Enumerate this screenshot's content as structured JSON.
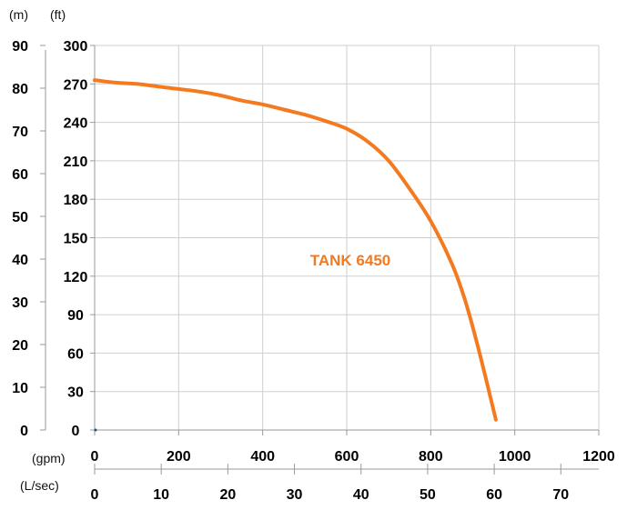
{
  "chart_data": {
    "type": "line",
    "title": "",
    "unit_labels": {
      "left_m": "(m)",
      "left_ft": "(ft)",
      "bottom_gpm": "(gpm)",
      "bottom_lsec": "(L/sec)"
    },
    "axes": {
      "y_ft": {
        "min": 0,
        "max": 300,
        "ticks": [
          0,
          30,
          60,
          90,
          120,
          150,
          180,
          210,
          240,
          270,
          300
        ]
      },
      "y_m": {
        "min": 0,
        "max": 90,
        "ticks": [
          0,
          10,
          20,
          30,
          40,
          50,
          60,
          70,
          80,
          90
        ]
      },
      "x_gpm": {
        "min": 0,
        "max": 1200,
        "ticks": [
          0,
          200,
          400,
          600,
          800,
          1000,
          1200
        ]
      },
      "x_lsec": {
        "min": 0,
        "max": 75.7,
        "ticks": [
          0,
          10,
          20,
          30,
          40,
          50,
          60,
          70
        ]
      }
    },
    "grid": true,
    "series": [
      {
        "name": "TANK 6450",
        "color": "#f47a20",
        "x": [
          0,
          50,
          100,
          150,
          200,
          250,
          300,
          350,
          400,
          450,
          500,
          550,
          600,
          650,
          700,
          750,
          800,
          850,
          880,
          910,
          935,
          955
        ],
        "y": [
          273,
          271,
          270,
          268,
          266,
          264,
          261,
          257,
          254,
          250,
          246,
          241,
          235,
          225,
          210,
          188,
          163,
          130,
          103,
          68,
          35,
          8
        ]
      }
    ],
    "annotations": [
      {
        "text": "TANK 6450",
        "color": "#f47a20"
      }
    ]
  }
}
